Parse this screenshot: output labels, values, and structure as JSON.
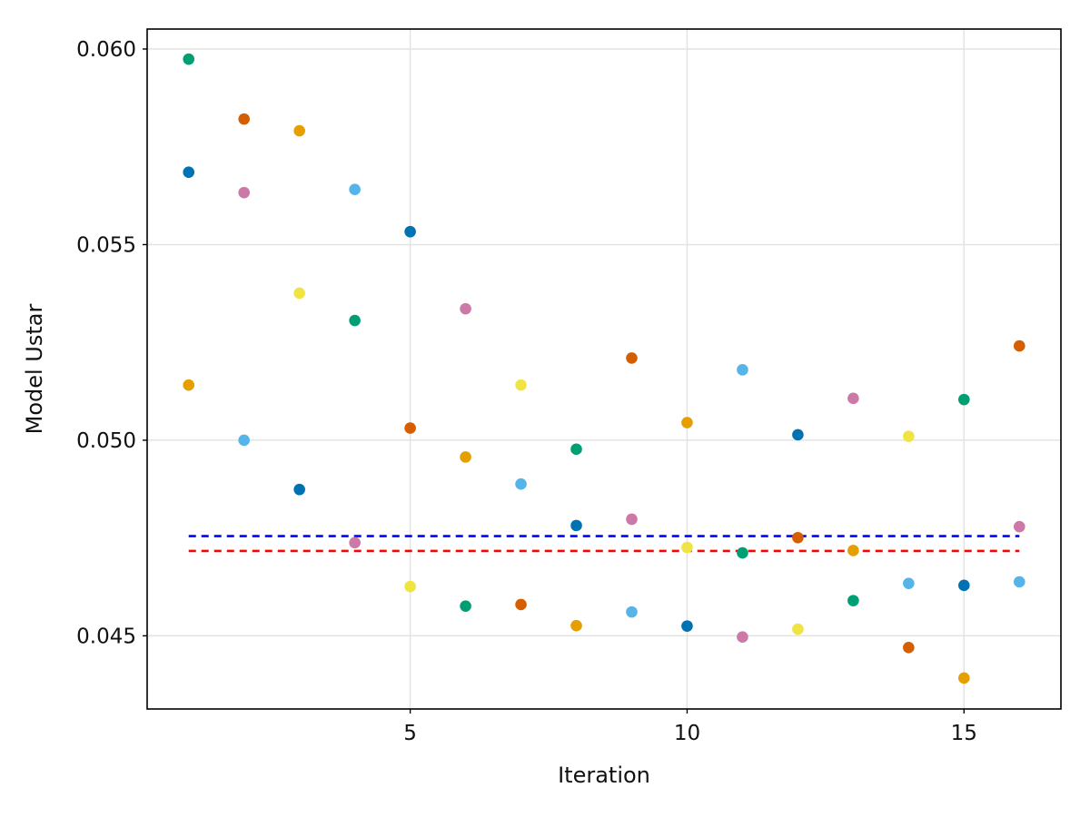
{
  "chart_data": {
    "type": "scatter",
    "title": "",
    "xlabel": "Iteration",
    "ylabel": "Model Ustar",
    "xlim": [
      0.25,
      16.75
    ],
    "ylim": [
      0.04313,
      0.06051
    ],
    "x_ticks": [
      5,
      10,
      15
    ],
    "x_tick_labels": [
      "5",
      "10",
      "15"
    ],
    "y_ticks": [
      0.045,
      0.05,
      0.055,
      0.06
    ],
    "y_tick_labels": [
      "0.045",
      "0.050",
      "0.055",
      "0.060"
    ],
    "grid": true,
    "legend": "none",
    "points": [
      {
        "x": 1,
        "y": 0.05974,
        "color": "#009e73"
      },
      {
        "x": 1,
        "y": 0.05685,
        "color": "#0072b2"
      },
      {
        "x": 1,
        "y": 0.05141,
        "color": "#e69f00"
      },
      {
        "x": 2,
        "y": 0.05821,
        "color": "#d55e00"
      },
      {
        "x": 2,
        "y": 0.05633,
        "color": "#cc79a7"
      },
      {
        "x": 2,
        "y": 0.05,
        "color": "#56b4e9"
      },
      {
        "x": 3,
        "y": 0.05791,
        "color": "#e69f00"
      },
      {
        "x": 3,
        "y": 0.05376,
        "color": "#f0e442"
      },
      {
        "x": 3,
        "y": 0.04874,
        "color": "#0072b2"
      },
      {
        "x": 4,
        "y": 0.05641,
        "color": "#56b4e9"
      },
      {
        "x": 4,
        "y": 0.05306,
        "color": "#009e73"
      },
      {
        "x": 4,
        "y": 0.04738,
        "color": "#cc79a7"
      },
      {
        "x": 5,
        "y": 0.05533,
        "color": "#0072b2"
      },
      {
        "x": 5,
        "y": 0.05031,
        "color": "#d55e00"
      },
      {
        "x": 5,
        "y": 0.04626,
        "color": "#f0e442"
      },
      {
        "x": 6,
        "y": 0.05336,
        "color": "#cc79a7"
      },
      {
        "x": 6,
        "y": 0.04957,
        "color": "#e69f00"
      },
      {
        "x": 6,
        "y": 0.04576,
        "color": "#009e73"
      },
      {
        "x": 7,
        "y": 0.05141,
        "color": "#f0e442"
      },
      {
        "x": 7,
        "y": 0.04888,
        "color": "#56b4e9"
      },
      {
        "x": 7,
        "y": 0.0458,
        "color": "#d55e00"
      },
      {
        "x": 8,
        "y": 0.04977,
        "color": "#009e73"
      },
      {
        "x": 8,
        "y": 0.04782,
        "color": "#0072b2"
      },
      {
        "x": 8,
        "y": 0.04526,
        "color": "#e69f00"
      },
      {
        "x": 9,
        "y": 0.0521,
        "color": "#d55e00"
      },
      {
        "x": 9,
        "y": 0.04798,
        "color": "#cc79a7"
      },
      {
        "x": 9,
        "y": 0.04561,
        "color": "#56b4e9"
      },
      {
        "x": 10,
        "y": 0.05045,
        "color": "#e69f00"
      },
      {
        "x": 10,
        "y": 0.04726,
        "color": "#f0e442"
      },
      {
        "x": 10,
        "y": 0.04525,
        "color": "#0072b2"
      },
      {
        "x": 11,
        "y": 0.0518,
        "color": "#56b4e9"
      },
      {
        "x": 11,
        "y": 0.04712,
        "color": "#009e73"
      },
      {
        "x": 11,
        "y": 0.04497,
        "color": "#cc79a7"
      },
      {
        "x": 12,
        "y": 0.05014,
        "color": "#0072b2"
      },
      {
        "x": 12,
        "y": 0.04751,
        "color": "#d55e00"
      },
      {
        "x": 12,
        "y": 0.04517,
        "color": "#f0e442"
      },
      {
        "x": 13,
        "y": 0.05107,
        "color": "#cc79a7"
      },
      {
        "x": 13,
        "y": 0.04718,
        "color": "#e69f00"
      },
      {
        "x": 13,
        "y": 0.0459,
        "color": "#009e73"
      },
      {
        "x": 14,
        "y": 0.0501,
        "color": "#f0e442"
      },
      {
        "x": 14,
        "y": 0.04634,
        "color": "#56b4e9"
      },
      {
        "x": 14,
        "y": 0.0447,
        "color": "#d55e00"
      },
      {
        "x": 15,
        "y": 0.05104,
        "color": "#009e73"
      },
      {
        "x": 15,
        "y": 0.04629,
        "color": "#0072b2"
      },
      {
        "x": 15,
        "y": 0.04392,
        "color": "#e69f00"
      },
      {
        "x": 16,
        "y": 0.05241,
        "color": "#d55e00"
      },
      {
        "x": 16,
        "y": 0.04779,
        "color": "#cc79a7"
      },
      {
        "x": 16,
        "y": 0.04638,
        "color": "#56b4e9"
      }
    ],
    "reference_lines": [
      {
        "y": 0.04755,
        "x_start": 1,
        "x_end": 16,
        "color": "#0000ff",
        "style": "dashed"
      },
      {
        "y": 0.04717,
        "x_start": 1,
        "x_end": 16,
        "color": "#ff0000",
        "style": "dashed"
      }
    ]
  }
}
